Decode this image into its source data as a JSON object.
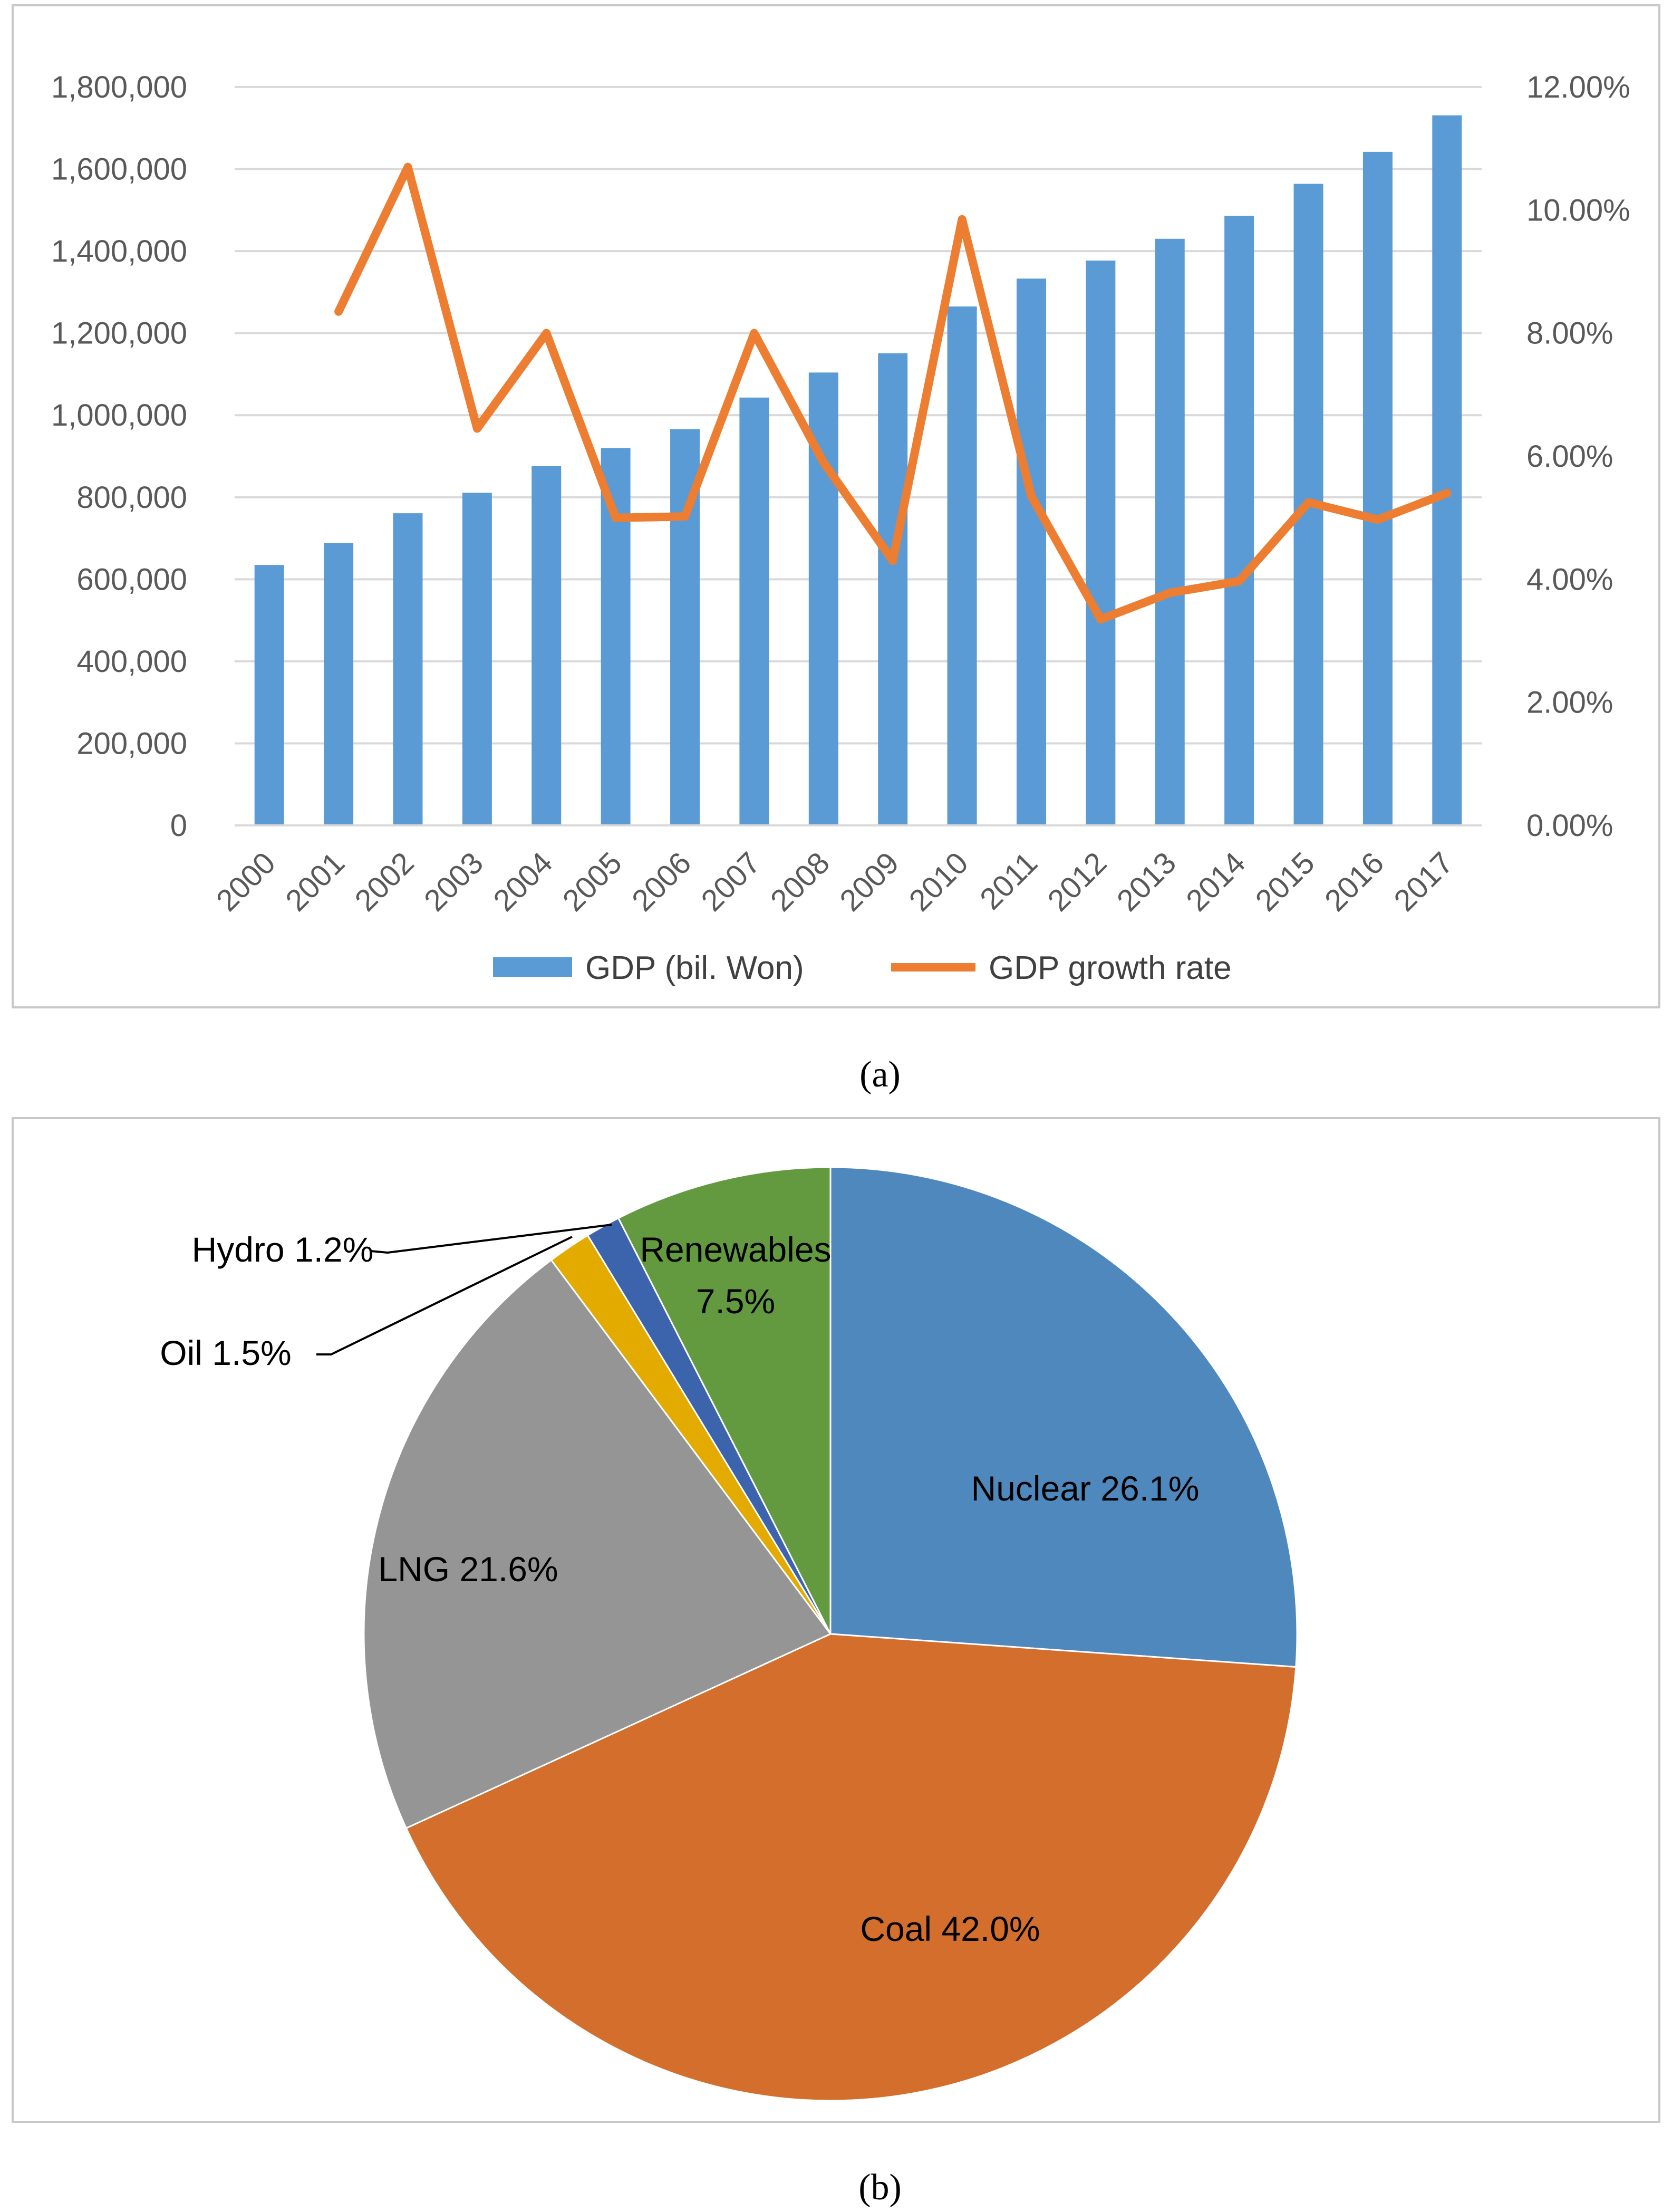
{
  "chart_data": [
    {
      "type": "bar+line",
      "panel_label": "a",
      "categories": [
        "2000",
        "2001",
        "2002",
        "2003",
        "2004",
        "2005",
        "2006",
        "2007",
        "2008",
        "2009",
        "2010",
        "2011",
        "2012",
        "2013",
        "2014",
        "2015",
        "2016",
        "2017"
      ],
      "series": [
        {
          "name": "GDP (bil. Won)",
          "type": "bar",
          "axis": "left",
          "color": "#5b9bd5",
          "values": [
            635000,
            688000,
            761000,
            811000,
            876000,
            920000,
            966000,
            1043000,
            1104000,
            1151000,
            1265000,
            1333000,
            1377000,
            1430000,
            1486000,
            1564000,
            1642000,
            1731000
          ]
        },
        {
          "name": "GDP growth rate",
          "type": "line",
          "axis": "right",
          "color": "#ed7d31",
          "values": [
            null,
            8.35,
            10.7,
            6.45,
            8.0,
            5.0,
            5.02,
            8.0,
            5.9,
            4.3,
            9.85,
            5.35,
            3.35,
            3.78,
            3.97,
            5.25,
            4.97,
            5.4
          ]
        }
      ],
      "y_left": {
        "min": 0,
        "max": 1800000,
        "ticks": [
          "0",
          "200,000",
          "400,000",
          "600,000",
          "800,000",
          "1,000,000",
          "1,200,000",
          "1,400,000",
          "1,600,000",
          "1,800,000"
        ]
      },
      "y_right": {
        "min": 0,
        "max": 12,
        "ticks": [
          "0.00%",
          "2.00%",
          "4.00%",
          "6.00%",
          "8.00%",
          "10.00%",
          "12.00%"
        ]
      },
      "legend": [
        "GDP (bil. Won)",
        "GDP growth rate"
      ],
      "legend_position": "bottom"
    },
    {
      "type": "pie",
      "panel_label": "b",
      "start_angle_deg": 0,
      "direction": "clockwise",
      "slices": [
        {
          "name": "Nuclear",
          "value": 26.1,
          "label": "Nuclear 26.1%",
          "color": "#4f88bd"
        },
        {
          "name": "Coal",
          "value": 42.0,
          "label": "Coal 42.0%",
          "color": "#d36e2c"
        },
        {
          "name": "LNG",
          "value": 21.6,
          "label": "LNG 21.6%",
          "color": "#959595"
        },
        {
          "name": "Oil",
          "value": 1.5,
          "label": "Oil 1.5%",
          "color": "#e3aa00"
        },
        {
          "name": "Hydro",
          "value": 1.2,
          "label": "Hydro 1.2%",
          "color": "#3b64ad"
        },
        {
          "name": "Renewables",
          "value": 7.5,
          "label_line1": "Renewables",
          "label_line2": "7.5%",
          "color": "#639a3f"
        }
      ]
    }
  ],
  "captions": {
    "a": "(a)",
    "b": "(b)"
  }
}
